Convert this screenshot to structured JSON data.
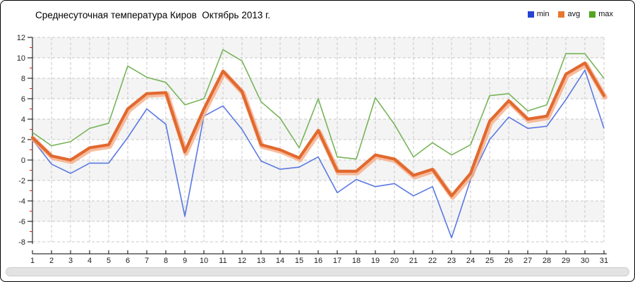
{
  "chart": {
    "title": "Среднесуточная температура Киров  Октябрь 2013 г."
  },
  "chart_data": {
    "type": "line",
    "title": "Среднесуточная температура Киров  Октябрь 2013 г.",
    "xlabel": "",
    "ylabel": "",
    "x": [
      1,
      2,
      3,
      4,
      5,
      6,
      7,
      8,
      9,
      10,
      11,
      12,
      13,
      14,
      15,
      16,
      17,
      18,
      19,
      20,
      21,
      22,
      23,
      24,
      25,
      26,
      27,
      28,
      29,
      30,
      31
    ],
    "ylim": [
      -8,
      12
    ],
    "y_ticks": [
      12,
      10,
      8,
      6,
      4,
      2,
      0,
      -2,
      -4,
      -6,
      -8
    ],
    "grid": true,
    "legend_position": "top-right",
    "series": [
      {
        "name": "min",
        "color": "#2443d6",
        "line_color": "#5b79e2",
        "values": [
          2.0,
          -0.4,
          -1.3,
          -0.3,
          -0.3,
          2.2,
          5.0,
          3.5,
          -5.5,
          4.3,
          5.3,
          3.0,
          -0.1,
          -0.9,
          -0.7,
          0.3,
          -3.2,
          -1.9,
          -2.6,
          -2.3,
          -3.5,
          -2.6,
          -7.6,
          -1.9,
          2.0,
          4.2,
          3.1,
          3.3,
          5.9,
          8.8,
          3.1
        ]
      },
      {
        "name": "avg",
        "color": "#e8772e",
        "line_color": "#e2692f",
        "halo_color": "#f5ad86",
        "values": [
          2.2,
          0.4,
          0.0,
          1.2,
          1.5,
          5.0,
          6.5,
          6.6,
          0.8,
          5.0,
          8.7,
          6.7,
          1.5,
          1.0,
          0.2,
          2.9,
          -1.1,
          -1.1,
          0.5,
          0.1,
          -1.5,
          -0.9,
          -3.5,
          -1.3,
          3.8,
          5.8,
          4.0,
          4.3,
          8.4,
          9.5,
          6.3
        ]
      },
      {
        "name": "max",
        "color": "#53a41f",
        "line_color": "#78b45a",
        "values": [
          2.7,
          1.4,
          1.8,
          3.1,
          3.6,
          9.2,
          8.1,
          7.6,
          5.4,
          6.0,
          10.8,
          9.7,
          5.7,
          4.1,
          1.2,
          6.0,
          0.3,
          0.1,
          6.1,
          3.5,
          0.3,
          1.7,
          0.5,
          1.5,
          6.3,
          6.5,
          4.8,
          5.4,
          10.4,
          10.4,
          8.0
        ]
      }
    ],
    "style": {
      "stripe_color": "#f4f4f4",
      "grid_color": "#c8c8c8",
      "axis_color": "#000000",
      "minor_tick_color": "#cc2222",
      "label_color": "#222222"
    }
  }
}
